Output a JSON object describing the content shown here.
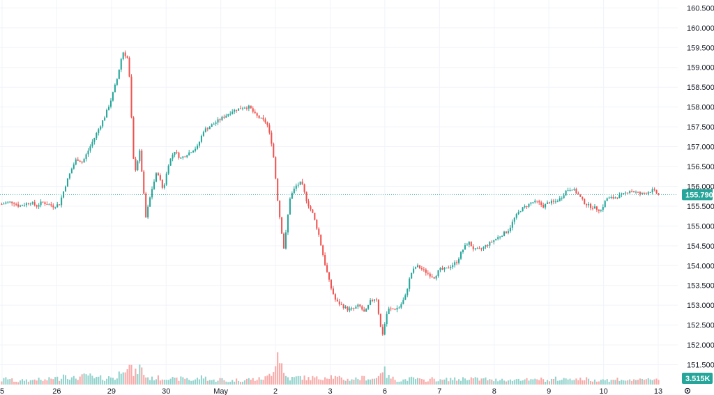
{
  "chart_data": {
    "type": "candlestick",
    "y_axis": {
      "min": 151.0,
      "max": 160.7,
      "tick_labels": [
        "160.500",
        "160.000",
        "159.500",
        "159.000",
        "158.500",
        "158.000",
        "157.500",
        "157.000",
        "156.500",
        "156.000",
        "155.500",
        "155.000",
        "154.500",
        "154.000",
        "153.500",
        "153.000",
        "152.500",
        "152.000",
        "151.500"
      ],
      "tick_values": [
        160.5,
        160.0,
        159.5,
        159.0,
        158.5,
        158.0,
        157.5,
        157.0,
        156.5,
        156.0,
        155.5,
        155.0,
        154.5,
        154.0,
        153.5,
        153.0,
        152.5,
        152.0,
        151.5
      ]
    },
    "x_axis": {
      "labels": [
        "5",
        "26",
        "29",
        "30",
        "May",
        "2",
        "3",
        "6",
        "7",
        "8",
        "9",
        "10",
        "13"
      ]
    },
    "last_price": 155.79,
    "last_price_label": "155.790",
    "volume_label": "3.515K",
    "colors": {
      "up": "#26a69a",
      "down": "#ef5350",
      "up_volume": "#92d2cc",
      "down_volume": "#f7a9a7",
      "price_line": "#26a69a",
      "grid": "#f0f3fa",
      "volume_tag": "#26a69a"
    },
    "grid": true,
    "price_path": [
      155.55,
      155.6,
      155.6,
      155.5,
      155.55,
      155.6,
      155.5,
      155.6,
      155.55,
      155.5,
      155.55,
      156.0,
      156.4,
      156.7,
      156.6,
      156.9,
      157.2,
      157.5,
      157.8,
      158.2,
      158.7,
      159.4,
      159.2,
      156.3,
      156.9,
      155.2,
      155.9,
      156.4,
      155.9,
      156.6,
      156.9,
      156.7,
      156.8,
      156.9,
      157.0,
      157.4,
      157.5,
      157.6,
      157.7,
      157.8,
      157.9,
      157.95,
      158.0,
      158.0,
      157.8,
      157.7,
      157.6,
      157.0,
      155.5,
      154.4,
      155.7,
      156.0,
      156.1,
      155.6,
      155.3,
      154.8,
      154.1,
      153.5,
      153.1,
      153.0,
      152.9,
      152.9,
      153.0,
      152.8,
      153.1,
      153.2,
      152.2,
      152.9,
      152.9,
      152.95,
      153.2,
      153.8,
      154.0,
      153.9,
      153.8,
      153.7,
      153.9,
      153.9,
      154.0,
      154.1,
      154.4,
      154.6,
      154.4,
      154.4,
      154.5,
      154.6,
      154.7,
      154.8,
      154.9,
      155.2,
      155.4,
      155.5,
      155.6,
      155.6,
      155.5,
      155.6,
      155.6,
      155.7,
      155.9,
      155.95,
      155.8,
      155.6,
      155.5,
      155.45,
      155.4,
      155.7,
      155.7,
      155.75,
      155.8,
      155.9,
      155.85,
      155.8,
      155.85,
      155.9,
      155.79
    ],
    "volume_path": [
      0.2,
      0.35,
      0.2,
      0.15,
      0.25,
      0.2,
      0.3,
      0.2,
      0.25,
      0.35,
      0.3,
      0.6,
      0.3,
      0.35,
      0.4,
      0.5,
      0.3,
      0.35,
      0.3,
      0.4,
      0.3,
      1.0,
      1.0,
      0.5,
      0.9,
      0.4,
      0.3,
      0.35,
      0.3,
      0.4,
      0.25,
      0.3,
      0.35,
      0.2,
      0.3,
      0.4,
      0.25,
      0.2,
      0.3,
      0.15,
      0.2,
      0.25,
      0.2,
      0.3,
      0.25,
      0.3,
      0.35,
      0.7,
      1.8,
      0.5,
      0.3,
      0.35,
      0.4,
      0.3,
      0.35,
      0.3,
      0.4,
      0.45,
      0.35,
      0.3,
      0.25,
      0.3,
      0.3,
      0.35,
      0.3,
      0.3,
      0.9,
      0.4,
      0.3,
      0.2,
      0.25,
      0.3,
      0.3,
      0.2,
      0.25,
      0.3,
      0.2,
      0.25,
      0.3,
      0.25,
      0.3,
      0.35,
      0.3,
      0.25,
      0.3,
      0.2,
      0.25,
      0.3,
      0.2,
      0.25,
      0.3,
      0.25,
      0.2,
      0.3,
      0.25,
      0.2,
      0.3,
      0.25,
      0.3,
      0.35,
      0.25,
      0.3,
      0.25,
      0.2,
      0.3,
      0.25,
      0.2,
      0.3,
      0.25,
      0.2,
      0.3,
      0.2,
      0.25,
      0.3,
      0.3
    ]
  }
}
